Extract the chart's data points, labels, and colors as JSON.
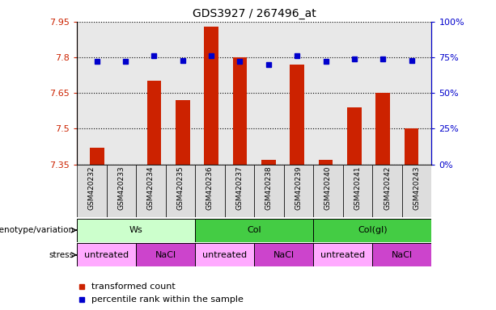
{
  "title": "GDS3927 / 267496_at",
  "samples": [
    "GSM420232",
    "GSM420233",
    "GSM420234",
    "GSM420235",
    "GSM420236",
    "GSM420237",
    "GSM420238",
    "GSM420239",
    "GSM420240",
    "GSM420241",
    "GSM420242",
    "GSM420243"
  ],
  "bar_bottom": 7.35,
  "bar_tops": [
    7.42,
    7.35,
    7.7,
    7.62,
    7.93,
    7.8,
    7.37,
    7.77,
    7.37,
    7.59,
    7.65,
    7.5
  ],
  "percentile_values": [
    72,
    72,
    76,
    73,
    76,
    72,
    70,
    76,
    72,
    74,
    74,
    73
  ],
  "ylim_left": [
    7.35,
    7.95
  ],
  "ylim_right": [
    0,
    100
  ],
  "yticks_left": [
    7.35,
    7.5,
    7.65,
    7.8,
    7.95
  ],
  "ytick_labels_left": [
    "7.35",
    "7.5",
    "7.65",
    "7.8",
    "7.95"
  ],
  "yticks_right": [
    0,
    25,
    50,
    75,
    100
  ],
  "ytick_labels_right": [
    "0%",
    "25%",
    "50%",
    "75%",
    "100%"
  ],
  "bar_color": "#cc2200",
  "dot_color": "#0000cc",
  "plot_bg_color": "#e8e8e8",
  "geno_groups": [
    {
      "label": "Ws",
      "start": 0,
      "end": 4,
      "color": "#ccffcc"
    },
    {
      "label": "Col",
      "start": 4,
      "end": 8,
      "color": "#44cc44"
    },
    {
      "label": "Col(gl)",
      "start": 8,
      "end": 12,
      "color": "#44cc44"
    }
  ],
  "stress_groups": [
    {
      "label": "untreated",
      "start": 0,
      "end": 2,
      "color": "#ffaaff"
    },
    {
      "label": "NaCl",
      "start": 2,
      "end": 4,
      "color": "#cc44cc"
    },
    {
      "label": "untreated",
      "start": 4,
      "end": 6,
      "color": "#ffaaff"
    },
    {
      "label": "NaCl",
      "start": 6,
      "end": 8,
      "color": "#cc44cc"
    },
    {
      "label": "untreated",
      "start": 8,
      "end": 10,
      "color": "#ffaaff"
    },
    {
      "label": "NaCl",
      "start": 10,
      "end": 12,
      "color": "#cc44cc"
    }
  ],
  "legend_items": [
    {
      "label": "transformed count",
      "color": "#cc2200"
    },
    {
      "label": "percentile rank within the sample",
      "color": "#0000cc"
    }
  ],
  "label_geno": "genotype/variation",
  "label_stress": "stress"
}
